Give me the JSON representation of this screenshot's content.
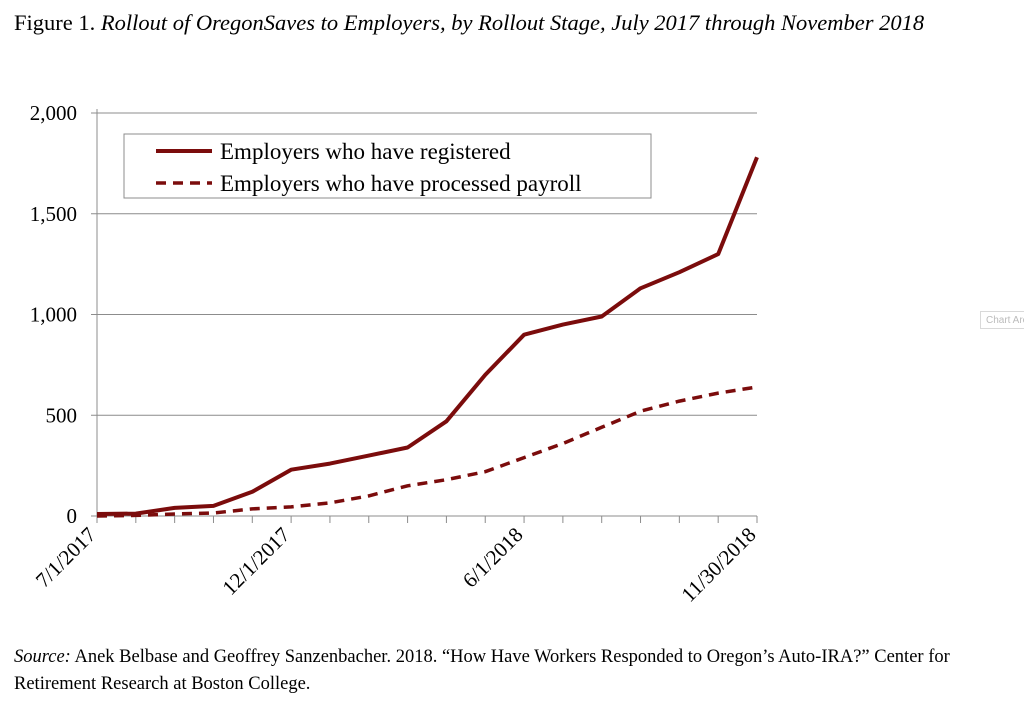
{
  "figure": {
    "label": "Figure 1.",
    "title": "Rollout of OregonSaves to Employers, by Rollout Stage, July 2017 through November 2018"
  },
  "source": {
    "label": "Source:",
    "text": "Anek Belbase and Geoffrey Sanzenbacher. 2018. “How Have Workers Responded to Oregon’s Auto-IRA?” Center for Retirement Research at Boston College."
  },
  "chart_area_tag": "Chart Area",
  "chart_data": {
    "type": "line",
    "title": "Rollout of OregonSaves to Employers, by Rollout Stage, July 2017 through November 2018",
    "xlabel": "",
    "ylabel": "",
    "ylim": [
      0,
      2000
    ],
    "yticks": [
      "0",
      "500",
      "1,000",
      "1,500",
      "2,000"
    ],
    "ytick_values": [
      0,
      500,
      1000,
      1500,
      2000
    ],
    "x": [
      "7/1/2017",
      "8/1/2017",
      "9/1/2017",
      "10/1/2017",
      "11/1/2017",
      "12/1/2017",
      "1/1/2018",
      "2/1/2018",
      "3/1/2018",
      "4/1/2018",
      "5/1/2018",
      "6/1/2018",
      "7/1/2018",
      "8/1/2018",
      "9/1/2018",
      "10/1/2018",
      "11/1/2018",
      "11/30/2018"
    ],
    "xtick_labels": [
      "7/1/2017",
      "12/1/2017",
      "6/1/2018",
      "11/30/2018"
    ],
    "xtick_label_indices": [
      0,
      5,
      11,
      17
    ],
    "grid": "horizontal",
    "legend_position": "top-left",
    "series": [
      {
        "name": "Employers who have registered",
        "style": "solid",
        "color": "#7b0c0c",
        "values": [
          10,
          12,
          40,
          50,
          120,
          230,
          260,
          300,
          340,
          470,
          700,
          900,
          950,
          990,
          1130,
          1210,
          1300,
          1780
        ]
      },
      {
        "name": "Employers who have processed payroll",
        "style": "dashed",
        "color": "#7b0c0c",
        "values": [
          0,
          3,
          10,
          15,
          35,
          45,
          65,
          100,
          150,
          180,
          220,
          290,
          360,
          440,
          520,
          570,
          610,
          640
        ]
      }
    ]
  }
}
